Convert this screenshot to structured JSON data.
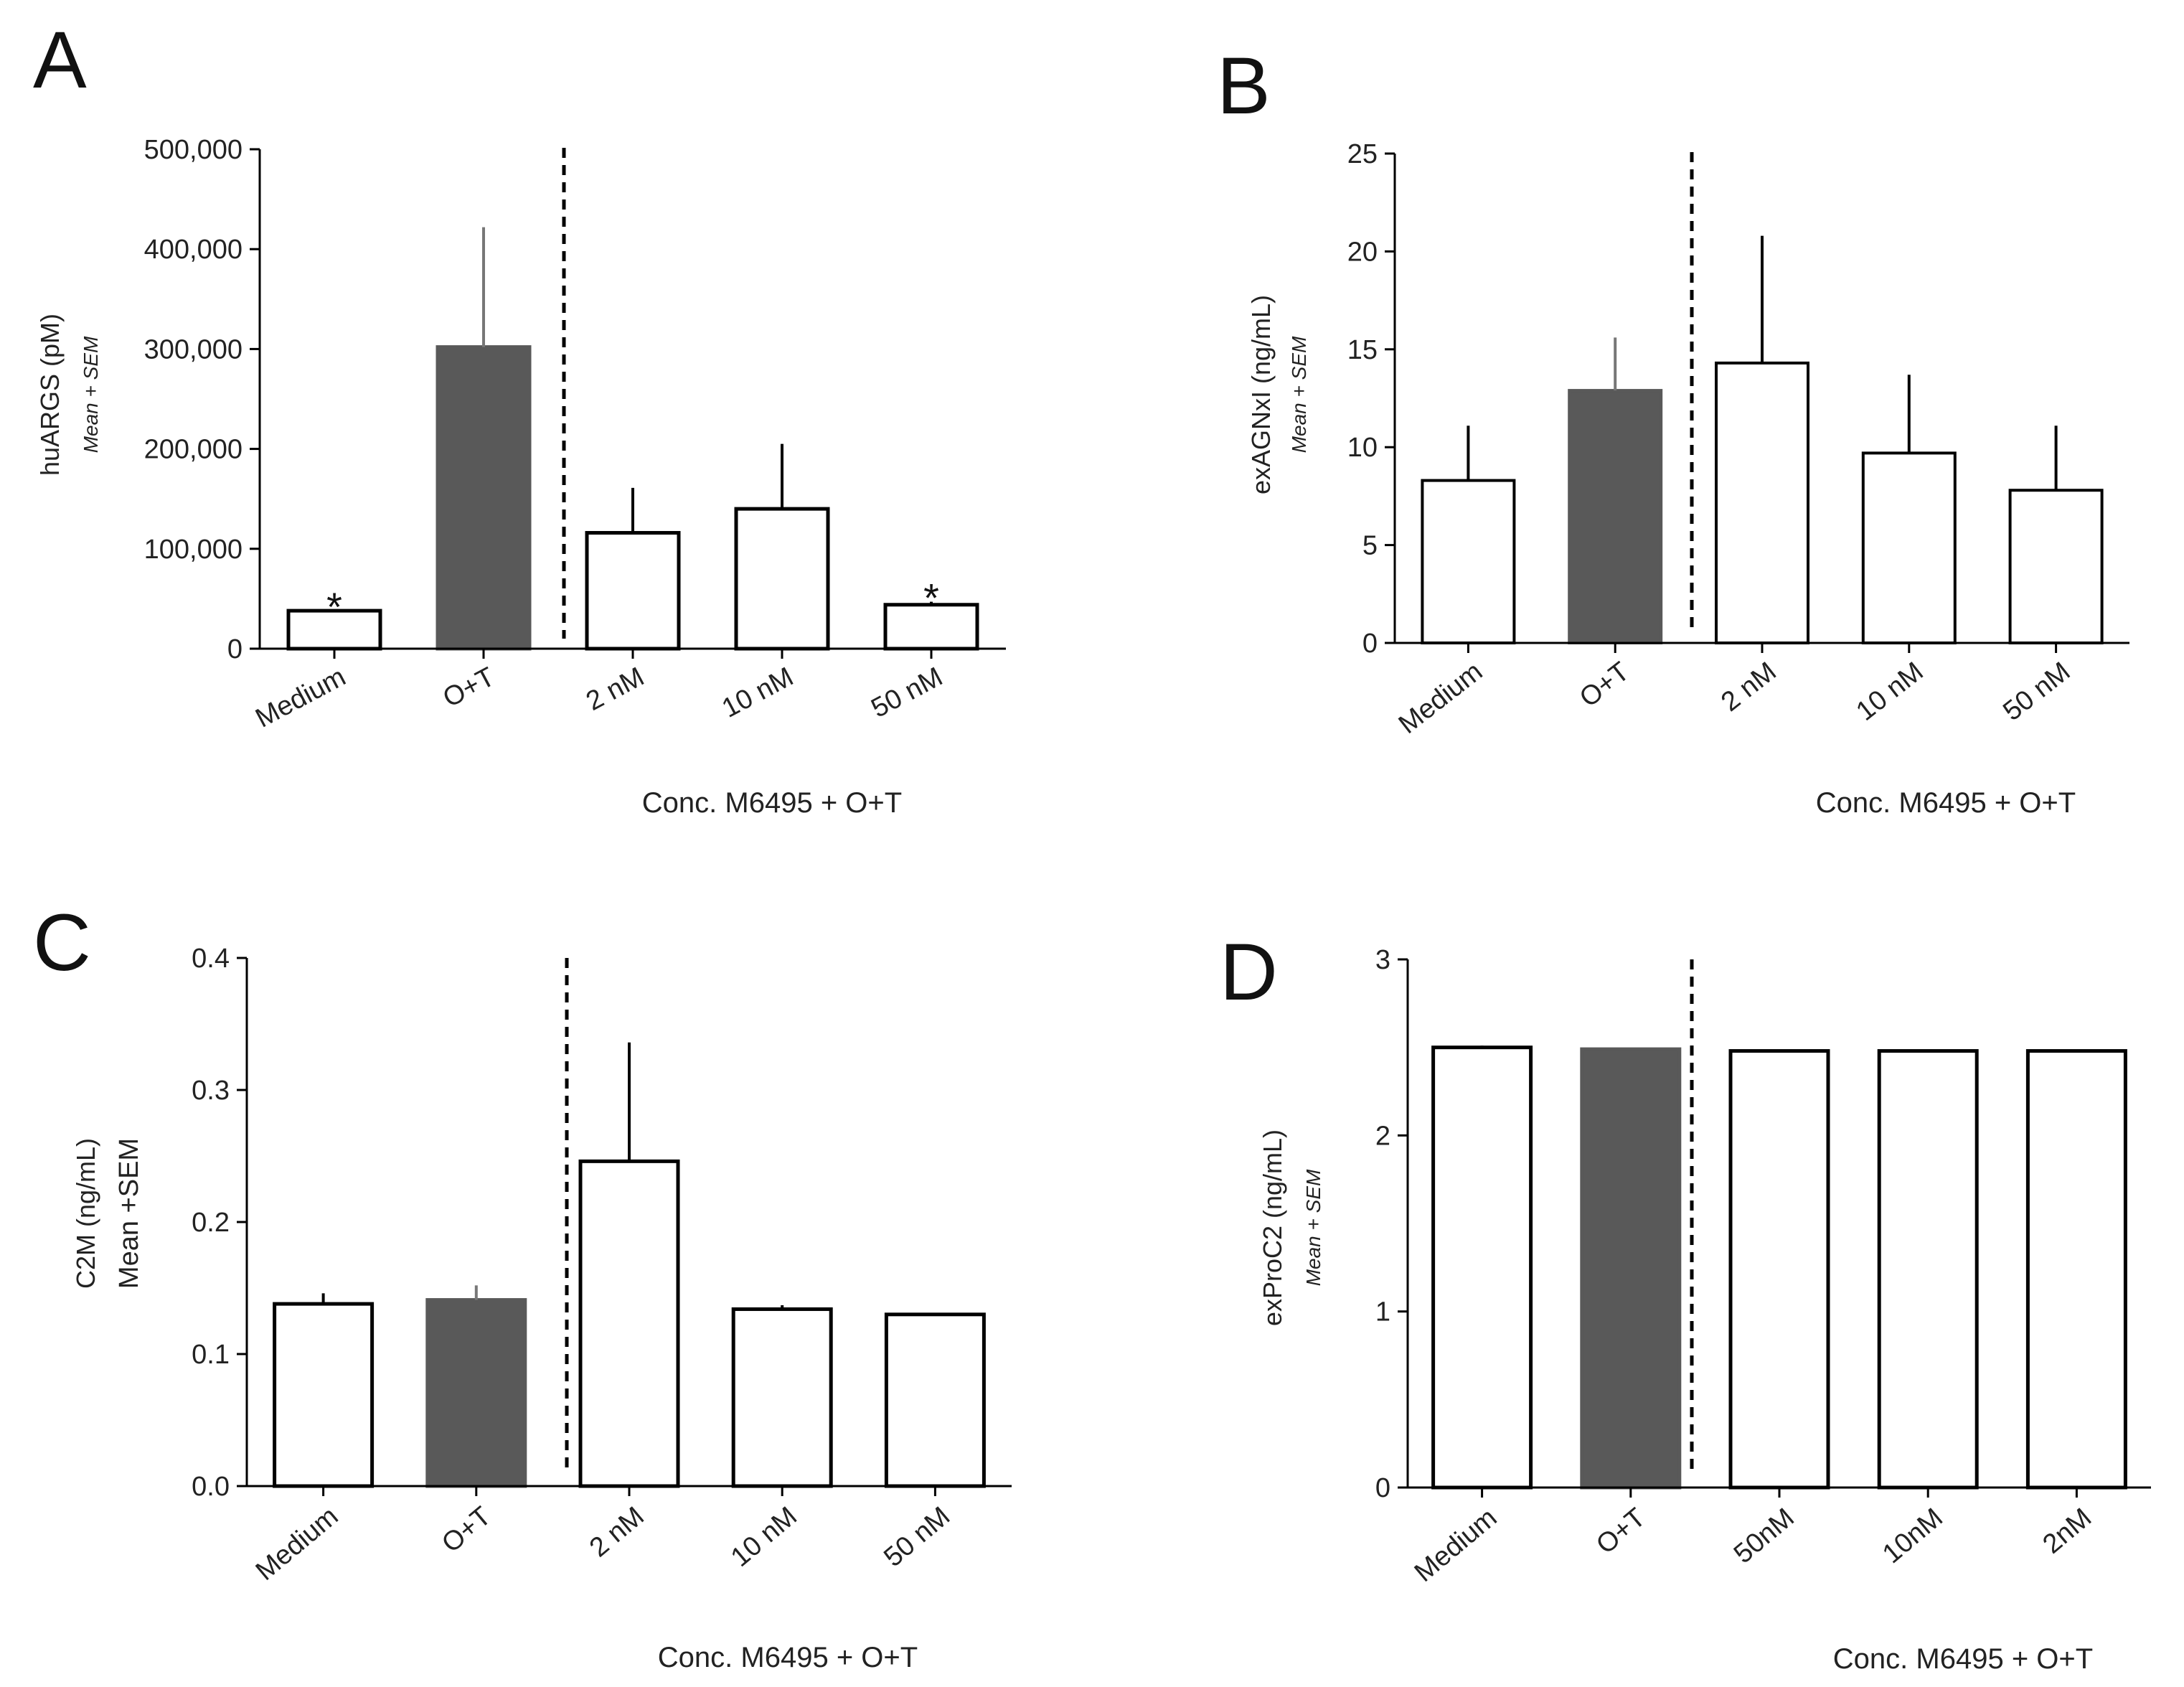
{
  "colors": {
    "axis": "#000000",
    "open_bar": "#ffffff",
    "filled_bar": "#595959",
    "error_bar": "#000000"
  },
  "chart_data": [
    {
      "panel": "A",
      "type": "bar",
      "categories": [
        "Medium",
        "O+T",
        "2 nM",
        "10 nM",
        "50 nM"
      ],
      "series": [
        {
          "name": "huARGS",
          "values": [
            38000,
            302000,
            116000,
            140000,
            44000
          ],
          "sem": [
            0,
            120000,
            45000,
            65000,
            3000
          ]
        }
      ],
      "filled": [
        false,
        true,
        false,
        false,
        false
      ],
      "annotations": [
        "*",
        "",
        "",
        "",
        "*"
      ],
      "ylabel": "huARGS (pM)",
      "ylabel_sub": "Mean + SEM",
      "ylim": [
        0,
        500000
      ],
      "yticks": [
        0,
        100000,
        200000,
        300000,
        400000,
        500000
      ],
      "ytick_labels": [
        "0",
        "100,000",
        "200,000",
        "300,000",
        "400,000",
        "500,000"
      ],
      "xlabel": "Conc. M6495 + O+T",
      "divider_after_index": 1
    },
    {
      "panel": "B",
      "type": "bar",
      "categories": [
        "Medium",
        "O+T",
        "2 nM",
        "10 nM",
        "50 nM"
      ],
      "series": [
        {
          "name": "exAGNxI",
          "values": [
            8.3,
            12.9,
            14.3,
            9.7,
            7.8
          ],
          "sem": [
            2.8,
            2.7,
            6.5,
            4.0,
            3.3
          ]
        }
      ],
      "filled": [
        false,
        true,
        false,
        false,
        false
      ],
      "annotations": [
        "",
        "",
        "",
        "",
        ""
      ],
      "ylabel": "exAGNxI (ng/mL)",
      "ylabel_sub": "Mean + SEM",
      "ylim": [
        0,
        25
      ],
      "yticks": [
        0,
        5,
        10,
        15,
        20,
        25
      ],
      "ytick_labels": [
        "0",
        "5",
        "10",
        "15",
        "20",
        "25"
      ],
      "xlabel": "Conc. M6495 + O+T",
      "divider_after_index": 1
    },
    {
      "panel": "C",
      "type": "bar",
      "categories": [
        "Medium",
        "O+T",
        "2 nM",
        "10 nM",
        "50 nM"
      ],
      "series": [
        {
          "name": "C2M",
          "values": [
            0.138,
            0.141,
            0.246,
            0.134,
            0.13
          ],
          "sem": [
            0.008,
            0.011,
            0.09,
            0.003,
            0.001
          ]
        }
      ],
      "filled": [
        false,
        true,
        false,
        false,
        false
      ],
      "annotations": [
        "",
        "",
        "",
        "",
        ""
      ],
      "ylabel": "C2M (ng/mL)",
      "ylabel_sub": "Mean +SEM",
      "ylim": [
        0,
        0.4
      ],
      "yticks": [
        0,
        0.1,
        0.2,
        0.3,
        0.4
      ],
      "ytick_labels": [
        "0.0",
        "0.1",
        "0.2",
        "0.3",
        "0.4"
      ],
      "xlabel": "Conc. M6495 + O+T",
      "divider_after_index": 1
    },
    {
      "panel": "D",
      "type": "bar",
      "categories": [
        "Medium",
        "O+T",
        "50nM",
        "10nM",
        "2nM"
      ],
      "series": [
        {
          "name": "exProC2",
          "values": [
            2.5,
            2.49,
            2.48,
            2.48,
            2.48
          ],
          "sem": [
            0.01,
            0,
            0,
            0,
            0
          ]
        }
      ],
      "filled": [
        false,
        true,
        false,
        false,
        false
      ],
      "annotations": [
        "",
        "",
        "",
        "",
        ""
      ],
      "ylabel": "exProC2 (ng/mL)",
      "ylabel_sub": "Mean + SEM",
      "ylim": [
        0,
        3
      ],
      "yticks": [
        0,
        1,
        2,
        3
      ],
      "ytick_labels": [
        "0",
        "1",
        "2",
        "3"
      ],
      "xlabel": "Conc. M6495 + O+T",
      "divider_after_index": 1
    }
  ]
}
